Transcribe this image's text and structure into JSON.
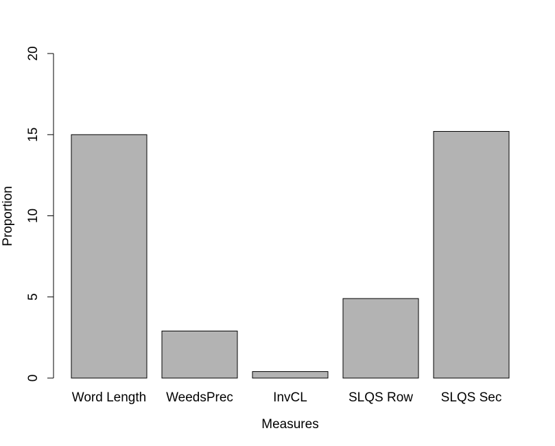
{
  "chart_data": {
    "type": "bar",
    "x_label": "Measures",
    "y_label": "Proportion",
    "categories": [
      "Word Length",
      "WeedsPrec",
      "InvCL",
      "SLQS Row",
      "SLQS Sec"
    ],
    "values": [
      15,
      2.9,
      0.4,
      4.9,
      15.2
    ],
    "color": "#b3b3b3",
    "ylim": [
      0,
      20
    ],
    "yticks": [
      0,
      5,
      10,
      15,
      20
    ],
    "grid": false
  }
}
